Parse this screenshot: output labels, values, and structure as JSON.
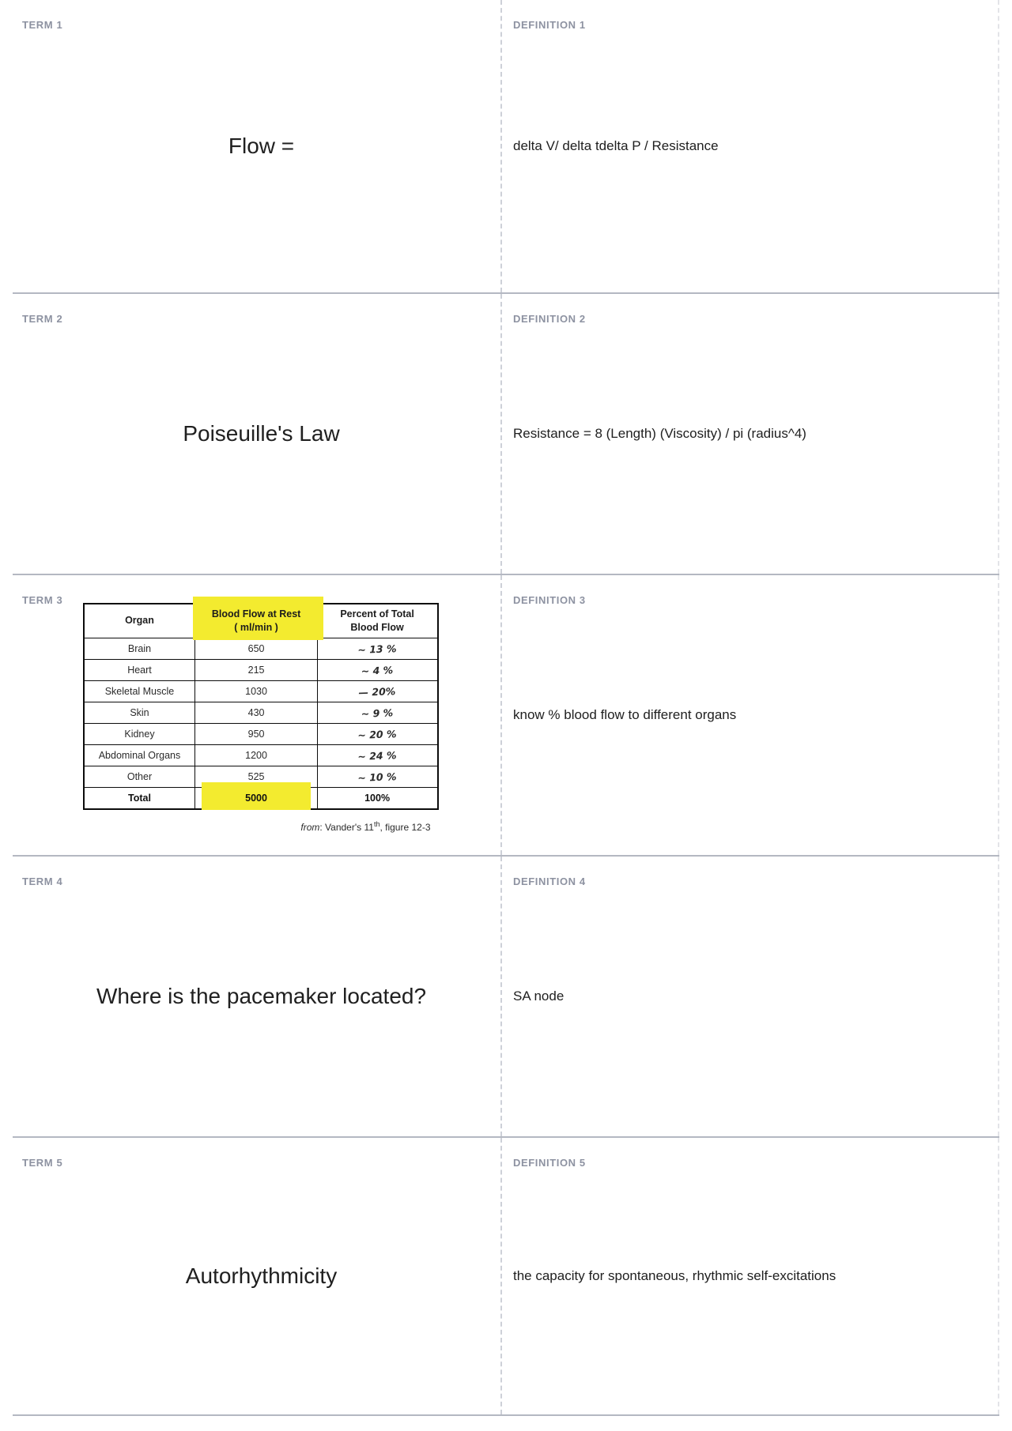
{
  "colors": {
    "hl": "#f3eb2f",
    "label": "#8d92a1",
    "rule": "#b4b8c2",
    "text": "#202020"
  },
  "cards": [
    {
      "term_label": "TERM 1",
      "definition_label": "DEFINITION 1",
      "term": "Flow =",
      "definition": "delta V/ delta tdelta P / Resistance"
    },
    {
      "term_label": "TERM 2",
      "definition_label": "DEFINITION 2",
      "term": "Poiseuille's Law",
      "definition": "Resistance = 8 (Length) (Viscosity) / pi (radius^4)"
    },
    {
      "term_label": "TERM 3",
      "definition_label": "DEFINITION 3",
      "term": "",
      "definition": "know % blood flow to different organs"
    },
    {
      "term_label": "TERM 4",
      "definition_label": "DEFINITION 4",
      "term": "Where is the pacemaker located?",
      "definition": "SA node"
    },
    {
      "term_label": "TERM 5",
      "definition_label": "DEFINITION 5",
      "term": "Autorhythmicity",
      "definition": "the capacity for spontaneous, rhythmic self-excitations"
    }
  ],
  "figure": {
    "headers": {
      "organ": "Organ",
      "flow_line1": "Blood Flow at Rest",
      "flow_line2": "( ml/min )",
      "pct_line1": "Percent of Total",
      "pct_line2": "Blood Flow"
    },
    "rows": [
      {
        "organ": "Brain",
        "flow": "650",
        "pct": "~ 13 %"
      },
      {
        "organ": "Heart",
        "flow": "215",
        "pct": "~ 4 %"
      },
      {
        "organ": "Skeletal Muscle",
        "flow": "1030",
        "pct": "— 20%"
      },
      {
        "organ": "Skin",
        "flow": "430",
        "pct": "~ 9 %"
      },
      {
        "organ": "Kidney",
        "flow": "950",
        "pct": "~ 20 %"
      },
      {
        "organ": "Abdominal Organs",
        "flow": "1200",
        "pct": "~ 24 %"
      },
      {
        "organ": "Other",
        "flow": "525",
        "pct": "~ 10 %"
      },
      {
        "organ": "Total",
        "flow": "5000",
        "pct": "100%"
      }
    ],
    "caption": {
      "from": "from",
      "mid": ": Vander's 11",
      "sup": "th",
      "post": ", figure 12-3"
    }
  }
}
